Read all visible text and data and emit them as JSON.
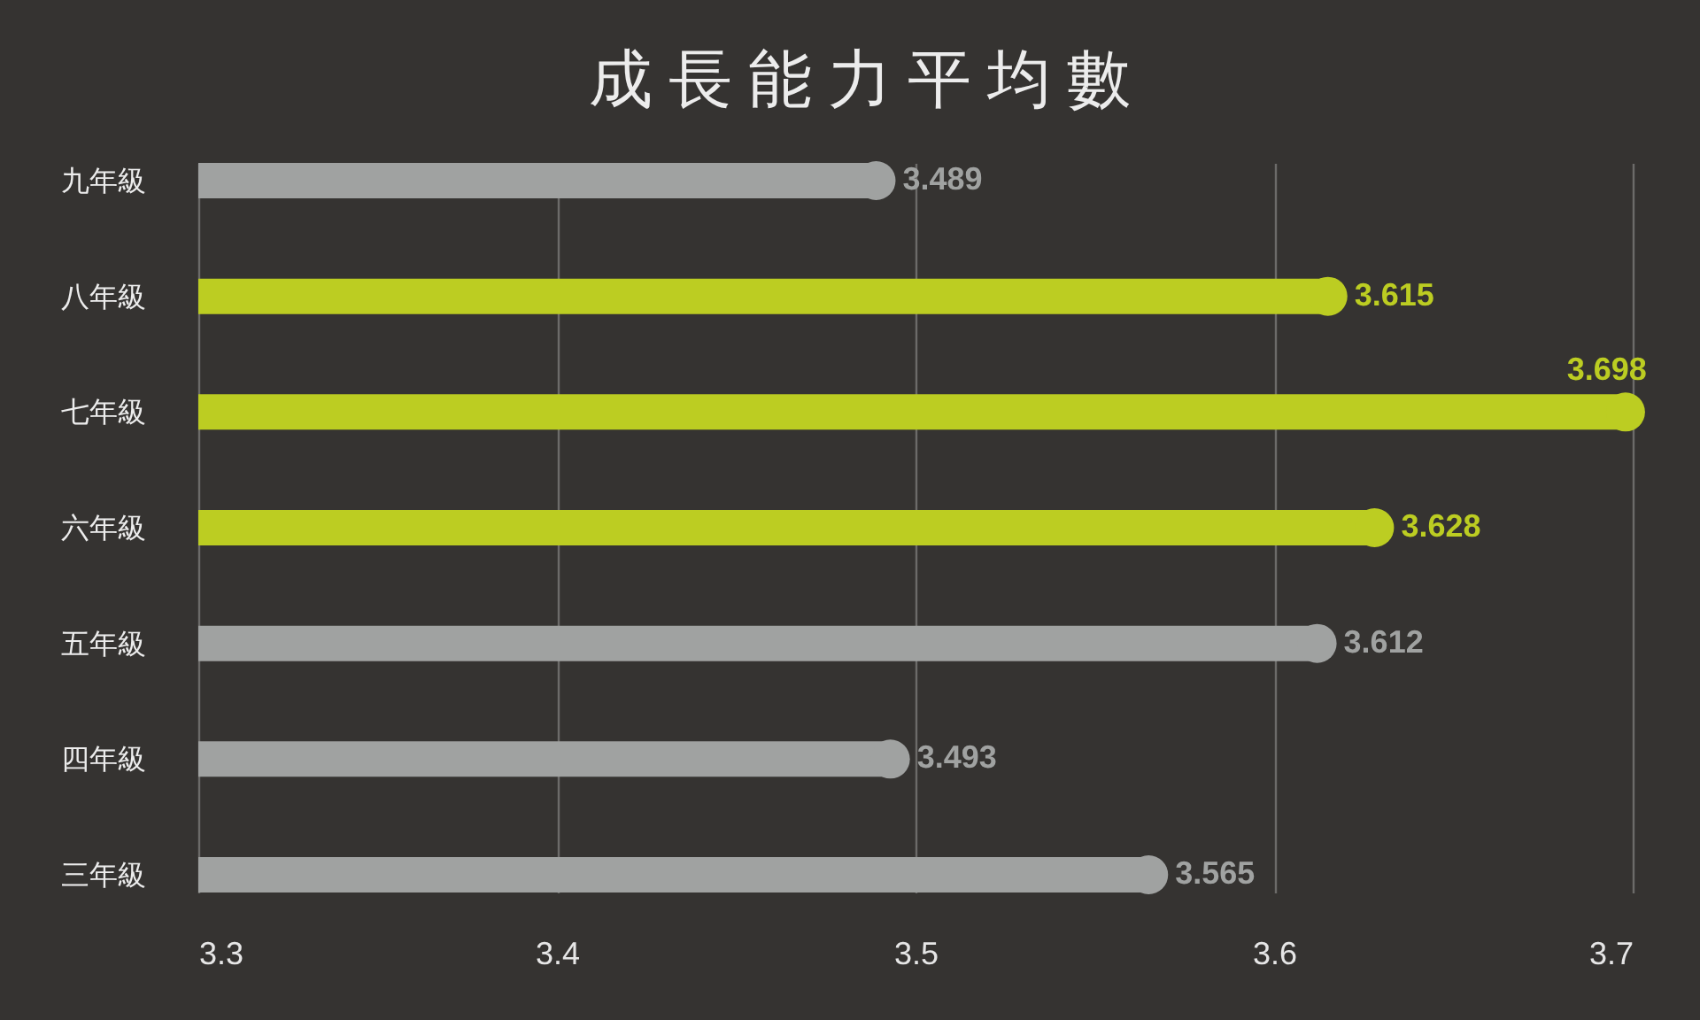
{
  "chart_data": {
    "type": "lollipop",
    "orientation": "horizontal",
    "title": "成長能力平均數",
    "categories": [
      "九年級",
      "八年級",
      "七年級",
      "六年級",
      "五年級",
      "四年級",
      "三年級"
    ],
    "values": [
      3.489,
      3.615,
      3.698,
      3.628,
      3.612,
      3.493,
      3.565
    ],
    "colors": [
      "#a0a2a1",
      "#bccd22",
      "#bccd22",
      "#bccd22",
      "#a0a2a1",
      "#a0a2a1",
      "#a0a2a1"
    ],
    "xlim": [
      3.3,
      3.7
    ],
    "xticks": [
      3.3,
      3.4,
      3.5,
      3.6,
      3.7
    ],
    "grid": "x",
    "data_labels": true,
    "marker": "circle"
  }
}
